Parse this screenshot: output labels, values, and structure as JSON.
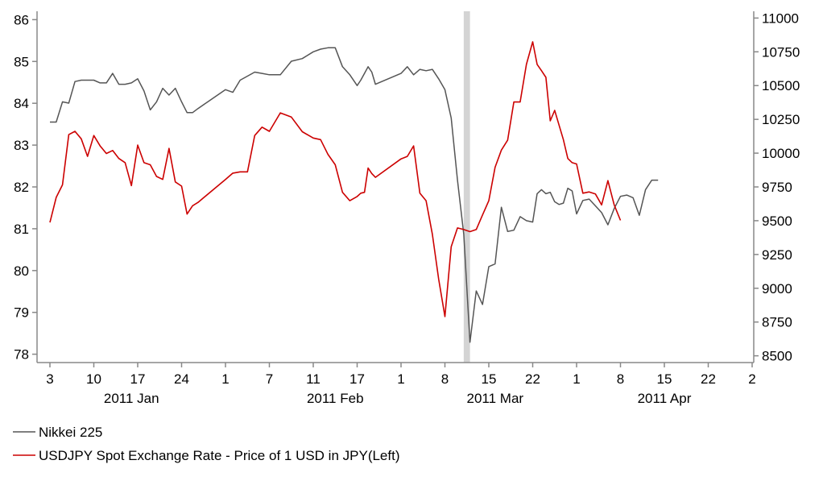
{
  "chart_data": {
    "type": "line",
    "title": "",
    "xlabel": "",
    "ylabel_left": "",
    "ylabel_right": "",
    "ylim_left": [
      77.8,
      86.2
    ],
    "ylim_right": [
      8450,
      11050
    ],
    "yticks_left": [
      78,
      79,
      80,
      81,
      82,
      83,
      84,
      85,
      86
    ],
    "yticks_right": [
      8500,
      8750,
      9000,
      9250,
      9500,
      9750,
      10000,
      10250,
      10500,
      10750,
      11000
    ],
    "x_ticks": [
      {
        "label": "3",
        "date": "2011-01-03"
      },
      {
        "label": "10",
        "date": "2011-01-10"
      },
      {
        "label": "17",
        "date": "2011-01-17"
      },
      {
        "label": "24",
        "date": "2011-01-24"
      },
      {
        "label": "1",
        "date": "2011-02-01"
      },
      {
        "label": "7",
        "date": "2011-02-07"
      },
      {
        "label": "11",
        "date": "2011-02-11"
      },
      {
        "label": "17",
        "date": "2011-02-17"
      },
      {
        "label": "1",
        "date": "2011-03-01"
      },
      {
        "label": "8",
        "date": "2011-03-08"
      },
      {
        "label": "15",
        "date": "2011-03-15"
      },
      {
        "label": "22",
        "date": "2011-03-22"
      },
      {
        "label": "1",
        "date": "2011-04-01"
      },
      {
        "label": "8",
        "date": "2011-04-08"
      },
      {
        "label": "15",
        "date": "2011-04-15"
      },
      {
        "label": "22",
        "date": "2011-04-22"
      },
      {
        "label": "2",
        "date": "2011-05-02"
      }
    ],
    "month_labels": [
      {
        "label": "2011 Jan",
        "date": "2011-01-16"
      },
      {
        "label": "2011 Feb",
        "date": "2011-02-14"
      },
      {
        "label": "2011 Mar",
        "date": "2011-03-16"
      },
      {
        "label": "2011 Apr",
        "date": "2011-04-15"
      }
    ],
    "highlight": {
      "start": "2011-03-11",
      "end": "2011-03-12"
    },
    "legend_position": "bottom-left",
    "series": [
      {
        "name": "Nikkei 225",
        "axis": "right",
        "color": "#555555",
        "points": [
          [
            "2011-01-03",
            10230
          ],
          [
            "2011-01-04",
            10230
          ],
          [
            "2011-01-05",
            10380
          ],
          [
            "2011-01-06",
            10370
          ],
          [
            "2011-01-07",
            10530
          ],
          [
            "2011-01-08",
            10540
          ],
          [
            "2011-01-09",
            10540
          ],
          [
            "2011-01-10",
            10540
          ],
          [
            "2011-01-11",
            10520
          ],
          [
            "2011-01-12",
            10520
          ],
          [
            "2011-01-13",
            10590
          ],
          [
            "2011-01-14",
            10510
          ],
          [
            "2011-01-15",
            10510
          ],
          [
            "2011-01-16",
            10520
          ],
          [
            "2011-01-17",
            10550
          ],
          [
            "2011-01-18",
            10460
          ],
          [
            "2011-01-19",
            10320
          ],
          [
            "2011-01-20",
            10380
          ],
          [
            "2011-01-21",
            10480
          ],
          [
            "2011-01-22",
            10430
          ],
          [
            "2011-01-23",
            10480
          ],
          [
            "2011-01-24",
            10380
          ],
          [
            "2011-01-25",
            10300
          ],
          [
            "2011-01-26",
            10300
          ],
          [
            "2011-01-27",
            10330
          ],
          [
            "2011-02-01",
            10470
          ],
          [
            "2011-02-02",
            10450
          ],
          [
            "2011-02-03",
            10540
          ],
          [
            "2011-02-04",
            10570
          ],
          [
            "2011-02-05",
            10600
          ],
          [
            "2011-02-06",
            10590
          ],
          [
            "2011-02-07",
            10580
          ],
          [
            "2011-02-08",
            10580
          ],
          [
            "2011-02-09",
            10680
          ],
          [
            "2011-02-10",
            10700
          ],
          [
            "2011-02-11",
            10750
          ],
          [
            "2011-02-12",
            10770
          ],
          [
            "2011-02-13",
            10780
          ],
          [
            "2011-02-14",
            10780
          ],
          [
            "2011-02-15",
            10640
          ],
          [
            "2011-02-16",
            10580
          ],
          [
            "2011-02-17",
            10500
          ],
          [
            "2011-02-18",
            10540
          ],
          [
            "2011-02-19",
            10590
          ],
          [
            "2011-02-20",
            10640
          ],
          [
            "2011-02-21",
            10600
          ],
          [
            "2011-02-22",
            10510
          ],
          [
            "2011-03-01",
            10590
          ],
          [
            "2011-03-02",
            10640
          ],
          [
            "2011-03-03",
            10580
          ],
          [
            "2011-03-04",
            10620
          ],
          [
            "2011-03-05",
            10610
          ],
          [
            "2011-03-06",
            10620
          ],
          [
            "2011-03-07",
            10550
          ],
          [
            "2011-03-08",
            10470
          ],
          [
            "2011-03-09",
            10260
          ],
          [
            "2011-03-10",
            9800
          ],
          [
            "2011-03-11",
            9400
          ],
          [
            "2011-03-12",
            8600
          ],
          [
            "2011-03-13",
            8980
          ],
          [
            "2011-03-14",
            8880
          ],
          [
            "2011-03-15",
            9160
          ],
          [
            "2011-03-16",
            9180
          ],
          [
            "2011-03-17",
            9600
          ],
          [
            "2011-03-18",
            9420
          ],
          [
            "2011-03-19",
            9430
          ],
          [
            "2011-03-20",
            9530
          ],
          [
            "2011-03-21",
            9500
          ],
          [
            "2011-03-22",
            9490
          ],
          [
            "2011-03-23",
            9700
          ],
          [
            "2011-03-24",
            9730
          ],
          [
            "2011-03-25",
            9700
          ],
          [
            "2011-03-26",
            9710
          ],
          [
            "2011-03-27",
            9640
          ],
          [
            "2011-03-28",
            9620
          ],
          [
            "2011-03-29",
            9630
          ],
          [
            "2011-03-30",
            9740
          ],
          [
            "2011-03-31",
            9720
          ],
          [
            "2011-04-01",
            9550
          ],
          [
            "2011-04-02",
            9650
          ],
          [
            "2011-04-03",
            9660
          ],
          [
            "2011-04-04",
            9610
          ],
          [
            "2011-04-05",
            9560
          ],
          [
            "2011-04-06",
            9470
          ],
          [
            "2011-04-07",
            9590
          ],
          [
            "2011-04-08",
            9680
          ],
          [
            "2011-04-09",
            9690
          ],
          [
            "2011-04-10",
            9670
          ],
          [
            "2011-04-11",
            9540
          ],
          [
            "2011-04-12",
            9730
          ],
          [
            "2011-04-13",
            9800
          ],
          [
            "2011-04-14",
            9800
          ]
        ]
      },
      {
        "name": "USDJPY Spot Exchange Rate - Price of 1 USD in JPY(Left)",
        "axis": "left",
        "color": "#cc0000",
        "points": [
          [
            "2011-01-03",
            81.15
          ],
          [
            "2011-01-04",
            81.75
          ],
          [
            "2011-01-05",
            82.05
          ],
          [
            "2011-01-06",
            83.25
          ],
          [
            "2011-01-07",
            83.33
          ],
          [
            "2011-01-08",
            83.15
          ],
          [
            "2011-01-09",
            82.73
          ],
          [
            "2011-01-10",
            83.23
          ],
          [
            "2011-01-11",
            82.98
          ],
          [
            "2011-01-12",
            82.8
          ],
          [
            "2011-01-13",
            82.87
          ],
          [
            "2011-01-14",
            82.68
          ],
          [
            "2011-01-15",
            82.58
          ],
          [
            "2011-01-16",
            82.03
          ],
          [
            "2011-01-17",
            83.0
          ],
          [
            "2011-01-18",
            82.58
          ],
          [
            "2011-01-19",
            82.53
          ],
          [
            "2011-01-20",
            82.25
          ],
          [
            "2011-01-21",
            82.18
          ],
          [
            "2011-01-22",
            82.92
          ],
          [
            "2011-01-23",
            82.12
          ],
          [
            "2011-01-24",
            82.02
          ],
          [
            "2011-01-25",
            81.35
          ],
          [
            "2011-01-26",
            81.55
          ],
          [
            "2011-01-27",
            81.63
          ],
          [
            "2011-02-01",
            82.18
          ],
          [
            "2011-02-02",
            82.33
          ],
          [
            "2011-02-03",
            82.36
          ],
          [
            "2011-02-04",
            82.36
          ],
          [
            "2011-02-05",
            83.23
          ],
          [
            "2011-02-06",
            83.43
          ],
          [
            "2011-02-07",
            83.33
          ],
          [
            "2011-02-08",
            83.77
          ],
          [
            "2011-02-09",
            83.67
          ],
          [
            "2011-02-10",
            83.32
          ],
          [
            "2011-02-11",
            83.17
          ],
          [
            "2011-02-12",
            83.13
          ],
          [
            "2011-02-13",
            82.78
          ],
          [
            "2011-02-14",
            82.53
          ],
          [
            "2011-02-15",
            81.87
          ],
          [
            "2011-02-16",
            81.67
          ],
          [
            "2011-02-17",
            81.77
          ],
          [
            "2011-02-18",
            81.85
          ],
          [
            "2011-02-19",
            81.87
          ],
          [
            "2011-02-20",
            82.45
          ],
          [
            "2011-02-21",
            82.32
          ],
          [
            "2011-02-22",
            82.23
          ],
          [
            "2011-03-01",
            82.67
          ],
          [
            "2011-03-02",
            82.73
          ],
          [
            "2011-03-03",
            82.98
          ],
          [
            "2011-03-04",
            81.85
          ],
          [
            "2011-03-05",
            81.67
          ],
          [
            "2011-03-06",
            80.87
          ],
          [
            "2011-03-07",
            79.8
          ],
          [
            "2011-03-08",
            78.9
          ],
          [
            "2011-03-09",
            80.57
          ],
          [
            "2011-03-10",
            81.02
          ],
          [
            "2011-03-11",
            80.98
          ],
          [
            "2011-03-12",
            80.93
          ],
          [
            "2011-03-13",
            80.98
          ],
          [
            "2011-03-14",
            81.33
          ],
          [
            "2011-03-15",
            81.67
          ],
          [
            "2011-03-16",
            82.47
          ],
          [
            "2011-03-17",
            82.88
          ],
          [
            "2011-03-18",
            83.12
          ],
          [
            "2011-03-19",
            84.03
          ],
          [
            "2011-03-20",
            84.03
          ],
          [
            "2011-03-21",
            84.93
          ],
          [
            "2011-03-22",
            85.47
          ],
          [
            "2011-03-23",
            84.93
          ],
          [
            "2011-03-24",
            84.78
          ],
          [
            "2011-03-25",
            84.62
          ],
          [
            "2011-03-26",
            83.58
          ],
          [
            "2011-03-27",
            83.83
          ],
          [
            "2011-03-28",
            83.48
          ],
          [
            "2011-03-29",
            83.13
          ],
          [
            "2011-03-30",
            82.68
          ],
          [
            "2011-03-31",
            82.58
          ],
          [
            "2011-04-01",
            82.55
          ],
          [
            "2011-04-02",
            81.85
          ],
          [
            "2011-04-03",
            81.88
          ],
          [
            "2011-04-04",
            81.83
          ],
          [
            "2011-04-05",
            81.57
          ],
          [
            "2011-04-06",
            82.15
          ],
          [
            "2011-04-07",
            81.57
          ],
          [
            "2011-04-08",
            81.2
          ]
        ]
      }
    ]
  }
}
